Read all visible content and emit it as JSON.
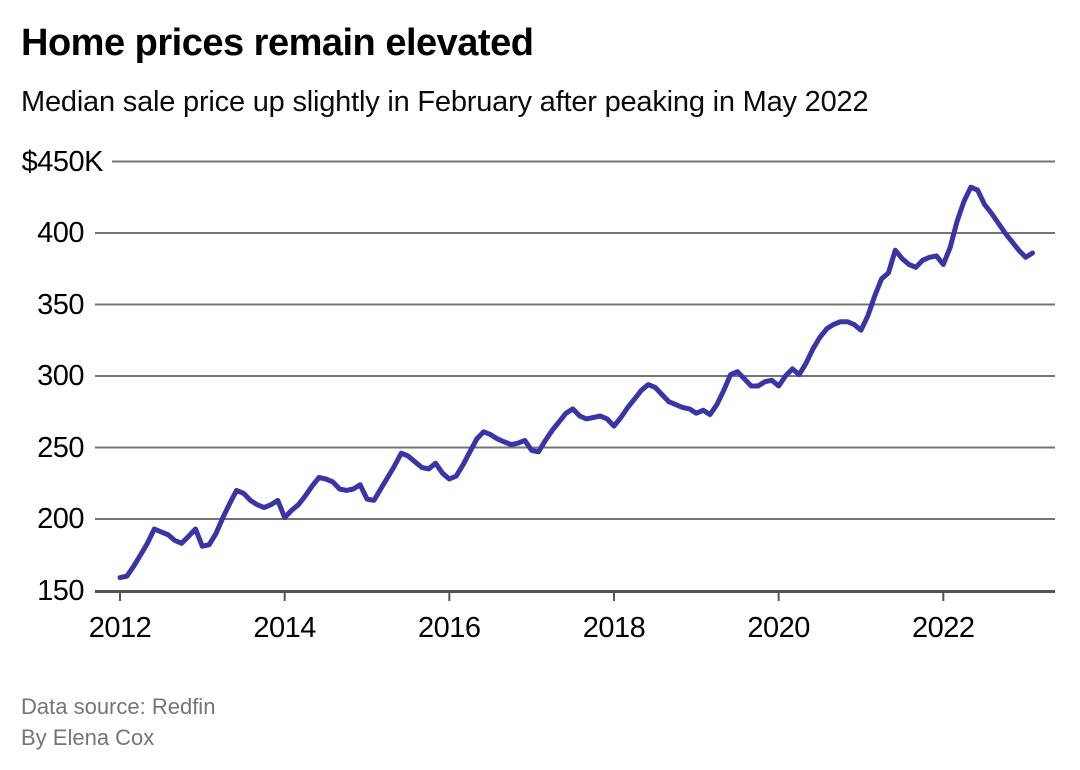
{
  "title": "Home prices remain elevated",
  "subtitle": "Median sale price up slightly in February after peaking in May 2022",
  "footer": {
    "source": "Data source: Redfin",
    "byline": "By Elena Cox"
  },
  "colors": {
    "line": "#3A35A7",
    "grid": "#757575",
    "axis": "#545454",
    "text": "#000000",
    "muted": "#757575"
  },
  "chart_data": {
    "type": "line",
    "title": "Home prices remain elevated",
    "subtitle": "Median sale price up slightly in February after peaking in May 2022",
    "unit": "USD thousands",
    "frequency": "monthly",
    "x_start": "2012-01",
    "x_end": "2023-02",
    "grid": "horizontal",
    "legend_position": "none",
    "y_axis": {
      "tick_labels": [
        "$450K",
        "400",
        "350",
        "300",
        "250",
        "200",
        "150"
      ],
      "tick_values": [
        450,
        400,
        350,
        300,
        250,
        200,
        150
      ],
      "ylim": [
        150,
        450
      ]
    },
    "x_axis": {
      "tick_labels": [
        "2012",
        "2014",
        "2016",
        "2018",
        "2020",
        "2022"
      ],
      "tick_years": [
        2012,
        2014,
        2016,
        2018,
        2020,
        2022
      ]
    },
    "series": [
      {
        "name": "Median sale price",
        "color": "#3A35A7",
        "values": [
          159,
          160,
          167,
          175,
          183,
          193,
          191,
          189,
          185,
          183,
          188,
          193,
          181,
          182,
          190,
          201,
          211,
          220,
          218,
          213,
          210,
          208,
          210,
          213,
          201,
          206,
          210,
          216,
          223,
          229,
          228,
          226,
          221,
          220,
          221,
          224,
          214,
          213,
          221,
          229,
          237,
          246,
          244,
          240,
          236,
          235,
          239,
          232,
          228,
          230,
          238,
          247,
          256,
          261,
          259,
          256,
          254,
          252,
          253,
          255,
          248,
          247,
          255,
          262,
          268,
          274,
          277,
          272,
          270,
          271,
          272,
          270,
          265,
          271,
          278,
          284,
          290,
          294,
          292,
          287,
          282,
          280,
          278,
          277,
          274,
          276,
          273,
          280,
          290,
          301,
          303,
          298,
          293,
          293,
          296,
          297,
          293,
          300,
          305,
          301,
          309,
          319,
          327,
          333,
          336,
          338,
          338,
          336,
          332,
          342,
          356,
          368,
          372,
          388,
          382,
          378,
          376,
          381,
          383,
          384,
          378,
          390,
          408,
          422,
          432,
          430,
          420,
          414,
          407,
          400,
          394,
          388,
          383,
          386
        ]
      }
    ],
    "notable_points": {
      "peak": {
        "date": "2022-05",
        "value": 432
      },
      "last": {
        "date": "2023-02",
        "value": 386
      },
      "first": {
        "date": "2012-01",
        "value": 159
      }
    }
  }
}
